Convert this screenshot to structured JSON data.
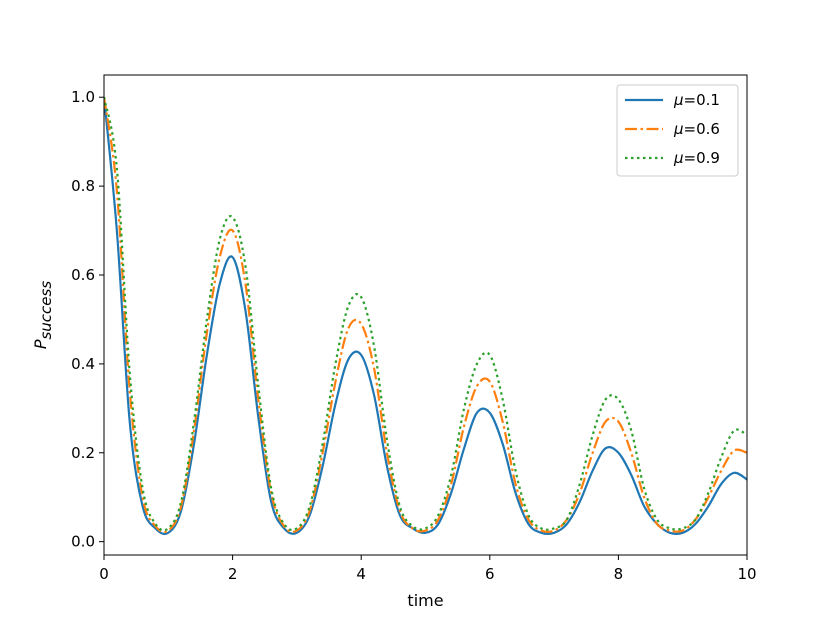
{
  "chart_data": {
    "type": "line",
    "title": "",
    "xlabel": "time",
    "ylabel": "P",
    "ylabel_subscript": "success",
    "xlim": [
      0,
      10
    ],
    "ylim": [
      -0.03,
      1.05
    ],
    "xticks": [
      0,
      2,
      4,
      6,
      8,
      10
    ],
    "yticks": [
      0.0,
      0.2,
      0.4,
      0.6,
      0.8,
      1.0
    ],
    "xtick_labels": [
      "0",
      "2",
      "4",
      "6",
      "8",
      "10"
    ],
    "ytick_labels": [
      "0.0",
      "0.2",
      "0.4",
      "0.6",
      "0.8",
      "1.0"
    ],
    "grid": false,
    "legend_position": "top-right",
    "legend_entries": [
      {
        "label_symbol": "μ",
        "label_value": "=0.1"
      },
      {
        "label_symbol": "μ",
        "label_value": "=0.6"
      },
      {
        "label_symbol": "μ",
        "label_value": "=0.9"
      }
    ],
    "series": [
      {
        "color": "#1f77b4",
        "linestyle": "solid",
        "x": [
          0,
          0.2,
          0.4,
          0.6,
          0.8,
          1.0,
          1.2,
          1.4,
          1.6,
          1.8,
          2.0,
          2.2,
          2.4,
          2.6,
          2.8,
          3.0,
          3.2,
          3.4,
          3.6,
          3.8,
          4.0,
          4.2,
          4.4,
          4.6,
          4.8,
          5.0,
          5.2,
          5.4,
          5.6,
          5.8,
          6.0,
          6.2,
          6.4,
          6.6,
          6.8,
          7.0,
          7.2,
          7.4,
          7.6,
          7.8,
          8.0,
          8.2,
          8.4,
          8.6,
          8.8,
          9.0,
          9.2,
          9.4,
          9.6,
          9.8,
          10.0
        ],
        "y": [
          1.0,
          0.7,
          0.27,
          0.08,
          0.03,
          0.02,
          0.07,
          0.22,
          0.42,
          0.58,
          0.64,
          0.52,
          0.28,
          0.09,
          0.03,
          0.02,
          0.06,
          0.17,
          0.31,
          0.41,
          0.42,
          0.33,
          0.17,
          0.06,
          0.03,
          0.02,
          0.04,
          0.11,
          0.21,
          0.29,
          0.29,
          0.22,
          0.11,
          0.04,
          0.02,
          0.02,
          0.04,
          0.09,
          0.16,
          0.21,
          0.2,
          0.15,
          0.08,
          0.04,
          0.02,
          0.02,
          0.04,
          0.08,
          0.13,
          0.155,
          0.14
        ]
      },
      {
        "color": "#ff7f0e",
        "linestyle": "dashdot",
        "x": [
          0,
          0.2,
          0.4,
          0.6,
          0.8,
          1.0,
          1.2,
          1.4,
          1.6,
          1.8,
          2.0,
          2.2,
          2.4,
          2.6,
          2.8,
          3.0,
          3.2,
          3.4,
          3.6,
          3.8,
          4.0,
          4.2,
          4.4,
          4.6,
          4.8,
          5.0,
          5.2,
          5.4,
          5.6,
          5.8,
          6.0,
          6.2,
          6.4,
          6.6,
          6.8,
          7.0,
          7.2,
          7.4,
          7.6,
          7.8,
          8.0,
          8.2,
          8.4,
          8.6,
          8.8,
          9.0,
          9.2,
          9.4,
          9.6,
          9.8,
          10.0
        ],
        "y": [
          1.0,
          0.79,
          0.34,
          0.1,
          0.035,
          0.025,
          0.08,
          0.25,
          0.47,
          0.64,
          0.7,
          0.58,
          0.32,
          0.11,
          0.035,
          0.025,
          0.07,
          0.2,
          0.36,
          0.48,
          0.49,
          0.39,
          0.2,
          0.07,
          0.03,
          0.025,
          0.05,
          0.13,
          0.26,
          0.35,
          0.36,
          0.27,
          0.13,
          0.05,
          0.025,
          0.025,
          0.05,
          0.11,
          0.2,
          0.27,
          0.27,
          0.2,
          0.1,
          0.04,
          0.025,
          0.025,
          0.05,
          0.1,
          0.16,
          0.205,
          0.2
        ]
      },
      {
        "color": "#2ca02c",
        "linestyle": "dotted",
        "x": [
          0,
          0.2,
          0.4,
          0.6,
          0.8,
          1.0,
          1.2,
          1.4,
          1.6,
          1.8,
          2.0,
          2.2,
          2.4,
          2.6,
          2.8,
          3.0,
          3.2,
          3.4,
          3.6,
          3.8,
          4.0,
          4.2,
          4.4,
          4.6,
          4.8,
          5.0,
          5.2,
          5.4,
          5.6,
          5.8,
          6.0,
          6.2,
          6.4,
          6.6,
          6.8,
          7.0,
          7.2,
          7.4,
          7.6,
          7.8,
          8.0,
          8.2,
          8.4,
          8.6,
          8.8,
          9.0,
          9.2,
          9.4,
          9.6,
          9.8,
          10.0
        ],
        "y": [
          1.0,
          0.84,
          0.38,
          0.12,
          0.04,
          0.03,
          0.09,
          0.27,
          0.5,
          0.68,
          0.73,
          0.62,
          0.35,
          0.12,
          0.04,
          0.03,
          0.08,
          0.22,
          0.4,
          0.53,
          0.55,
          0.44,
          0.23,
          0.08,
          0.035,
          0.03,
          0.06,
          0.15,
          0.3,
          0.4,
          0.42,
          0.32,
          0.16,
          0.06,
          0.03,
          0.03,
          0.05,
          0.13,
          0.24,
          0.32,
          0.32,
          0.25,
          0.12,
          0.05,
          0.03,
          0.03,
          0.05,
          0.11,
          0.19,
          0.25,
          0.24
        ]
      }
    ]
  }
}
